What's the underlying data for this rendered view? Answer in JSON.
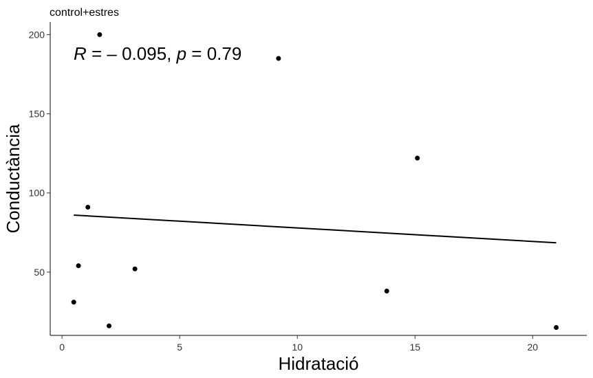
{
  "chart_data": {
    "type": "scatter",
    "title": "control+estres",
    "xlabel": "Hidratació",
    "ylabel": "Conductància",
    "xlim": [
      -0.5,
      22.3
    ],
    "ylim": [
      10,
      208
    ],
    "xticks": [
      0,
      5,
      10,
      15,
      20
    ],
    "yticks": [
      50,
      100,
      150,
      200
    ],
    "grid": false,
    "points": [
      {
        "x": 0.5,
        "y": 31
      },
      {
        "x": 0.7,
        "y": 54
      },
      {
        "x": 1.1,
        "y": 91
      },
      {
        "x": 1.6,
        "y": 200
      },
      {
        "x": 2.0,
        "y": 16
      },
      {
        "x": 3.1,
        "y": 52
      },
      {
        "x": 9.2,
        "y": 185
      },
      {
        "x": 13.8,
        "y": 38
      },
      {
        "x": 15.1,
        "y": 122
      },
      {
        "x": 21.0,
        "y": 15
      }
    ],
    "fit_line": {
      "x1": 0.5,
      "y1": 86,
      "x2": 21.0,
      "y2": 68.5
    },
    "annotation": {
      "r_label": "R",
      "r_value": " = – 0.095, ",
      "p_label": "p",
      "p_value": " = 0.79"
    },
    "colors": {
      "points": "#000000",
      "line": "#000000",
      "axis": "#000000"
    }
  }
}
